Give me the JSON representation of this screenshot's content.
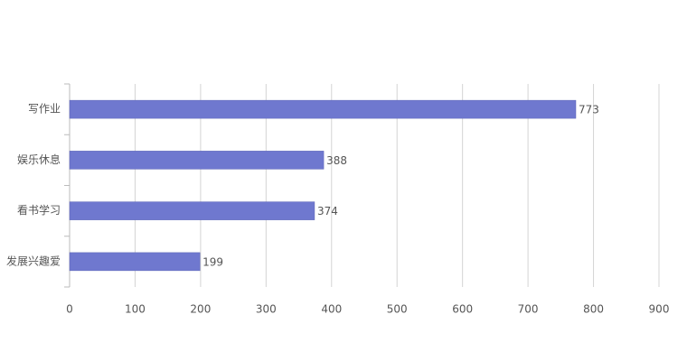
{
  "chart_data": {
    "type": "bar",
    "orientation": "horizontal",
    "categories": [
      "写作业",
      "娱乐休息",
      "看书学习",
      "发展兴趣爱"
    ],
    "values": [
      773,
      388,
      374,
      199
    ],
    "color": "#6f78cf",
    "xlim": [
      0,
      900
    ],
    "xticks": [
      0,
      100,
      200,
      300,
      400,
      500,
      600,
      700,
      800,
      900
    ],
    "grid": true
  }
}
